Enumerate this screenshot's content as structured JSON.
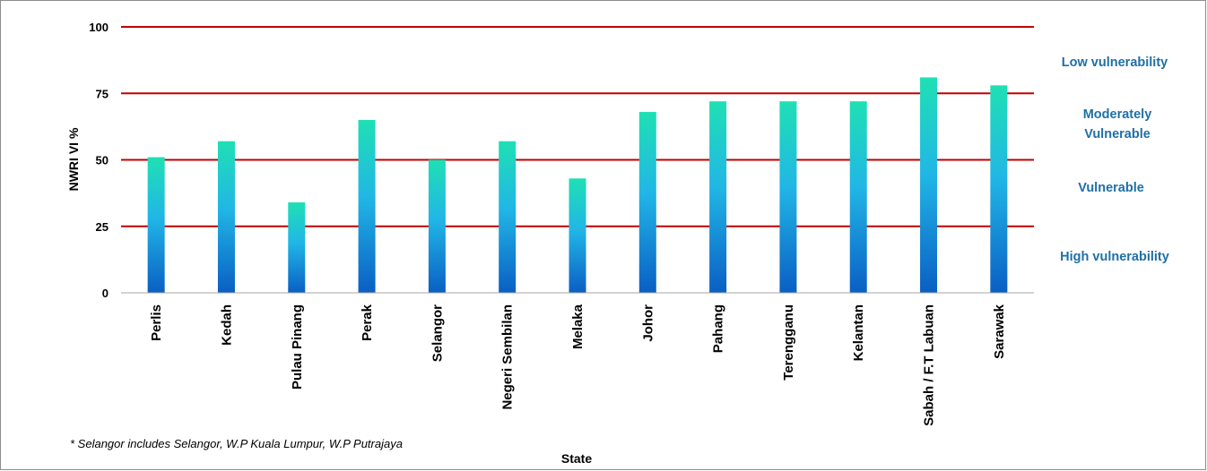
{
  "chart_data": {
    "type": "bar",
    "categories": [
      "Perlis",
      "Kedah",
      "Pulau Pinang",
      "Perak",
      "Selangor",
      "Negeri Sembilan",
      "Melaka",
      "Johor",
      "Pahang",
      "Terengganu",
      "Kelantan",
      "Sabah / F.T Labuan",
      "Sarawak"
    ],
    "values": [
      51,
      57,
      34,
      65,
      50,
      57,
      43,
      68,
      72,
      72,
      72,
      81,
      78
    ],
    "xlabel": "State",
    "ylabel": "NWRI VI %",
    "ylim": [
      0,
      100
    ],
    "yticks": [
      0,
      25,
      50,
      75,
      100
    ],
    "threshold_lines": [
      25,
      50,
      75,
      100
    ],
    "grid": false,
    "bands": [
      "Low vulnerability",
      "Moderately Vulnerable",
      "Vulnerable",
      "High vulnerability"
    ],
    "note": "* Selangor includes Selangor, W.P Kuala Lumpur, W.P Putrajaya"
  },
  "colors": {
    "bar_top": "#1fe0b4",
    "bar_mid": "#21b6e6",
    "bar_bottom": "#0a5fc4",
    "threshold_line": "#c00000",
    "axis": "#a6a6a6",
    "band_text": "#1f6fa6"
  }
}
